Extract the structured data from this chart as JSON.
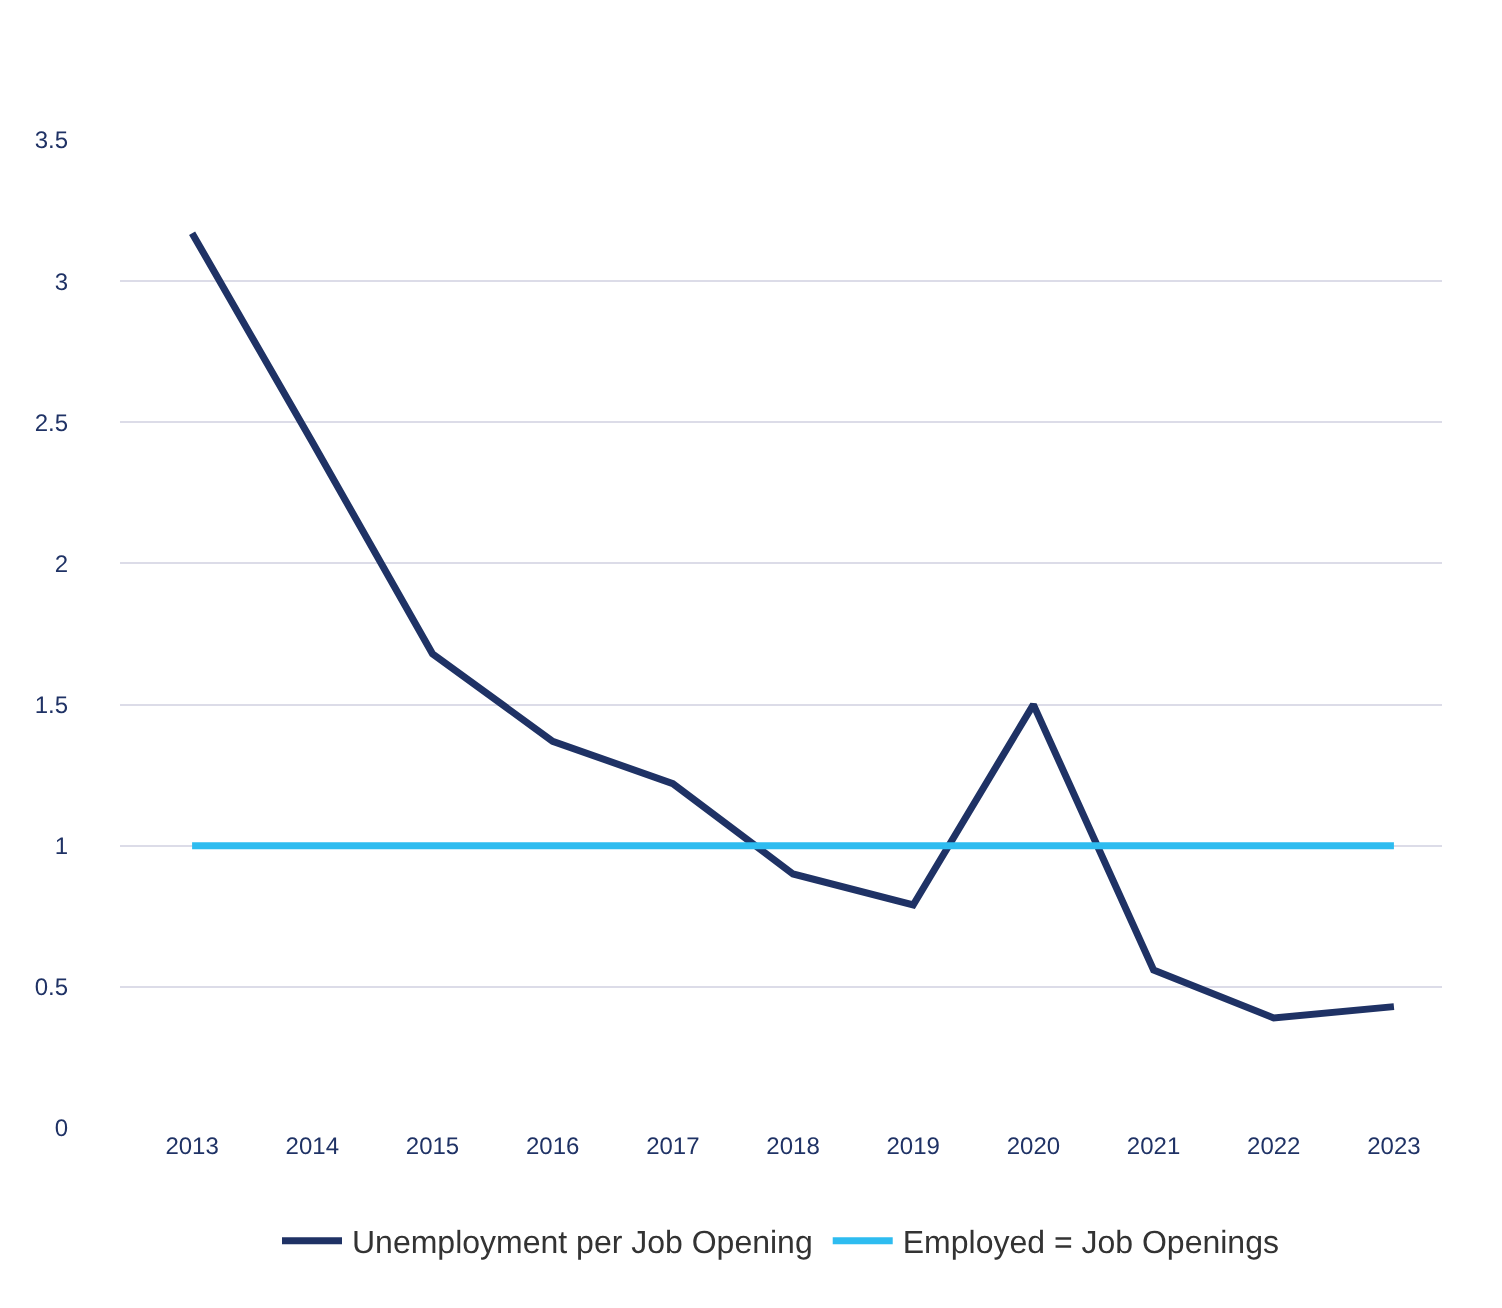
{
  "chart_data": {
    "type": "line",
    "categories": [
      "2013",
      "2014",
      "2015",
      "2016",
      "2017",
      "2018",
      "2019",
      "2020",
      "2021",
      "2022",
      "2023"
    ],
    "series": [
      {
        "name": "Unemployment per Job Opening",
        "color": "#1f3265",
        "values": [
          3.17,
          2.43,
          1.68,
          1.37,
          1.22,
          0.9,
          0.79,
          1.5,
          0.56,
          0.39,
          0.43
        ]
      },
      {
        "name": "Employed = Job Openings",
        "color": "#2ebcf0",
        "values": [
          1,
          1,
          1,
          1,
          1,
          1,
          1,
          1,
          1,
          1,
          1
        ]
      }
    ],
    "ylim": [
      0,
      3.5
    ],
    "yticks": [
      0,
      0.5,
      1,
      1.5,
      2,
      2.5,
      3,
      3.5
    ],
    "grid": "y",
    "legend": "bottom",
    "marker": "none",
    "line_style": "solid"
  }
}
